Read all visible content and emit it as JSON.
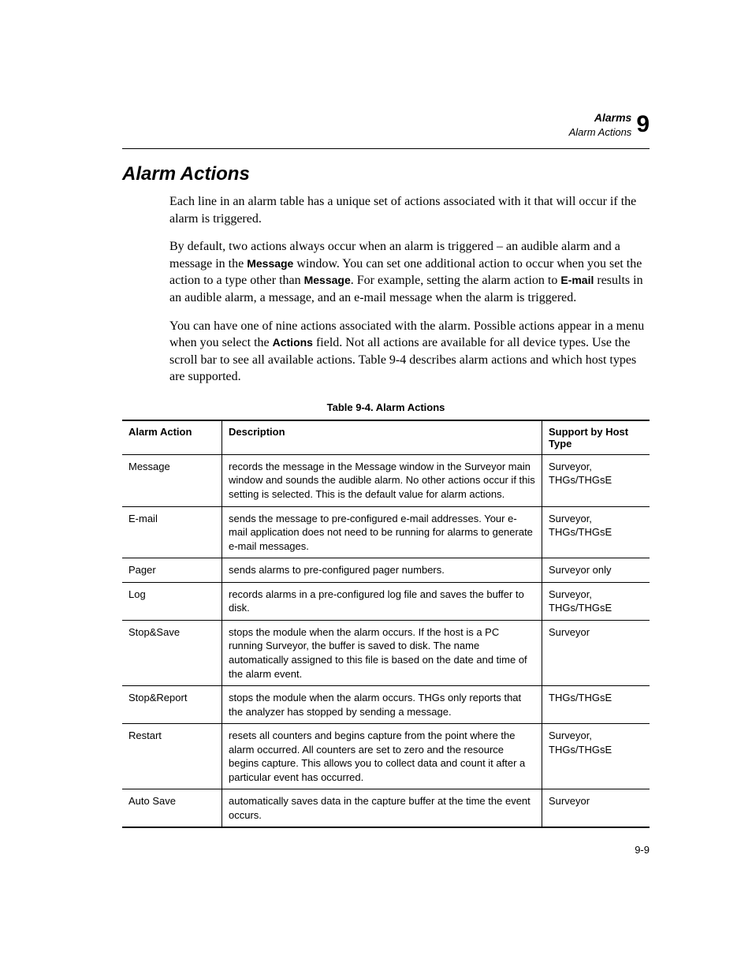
{
  "header": {
    "chapter_title": "Alarms",
    "section_title": "Alarm Actions",
    "chapter_number": "9"
  },
  "section": {
    "heading": "Alarm Actions",
    "p1": "Each line in an alarm table has a unique set of actions associated with it that will occur if the alarm is triggered.",
    "p2_a": "By default, two actions always occur when an alarm is triggered – an audible alarm and a message in the ",
    "p2_b1": "Message",
    "p2_c": " window. You can set one additional action to occur when you set the action to a type other than ",
    "p2_b2": "Message",
    "p2_d": ". For example, setting the alarm action to ",
    "p2_b3": "E-mail",
    "p2_e": " results in an audible alarm, a message, and an e-mail message when the alarm is triggered.",
    "p3_a": "You can have one of nine actions associated with the alarm. Possible actions appear in a menu when you select the ",
    "p3_b1": "Actions",
    "p3_b": " field. Not all actions are available for all device types. Use the scroll bar to see all available actions. Table 9-4 describes alarm actions and which host types are supported."
  },
  "table": {
    "caption": "Table 9-4. Alarm Actions",
    "columns": [
      "Alarm Action",
      "Description",
      "Support by Host Type"
    ],
    "rows": [
      [
        "Message",
        "records the message in the Message window in the Surveyor main window and sounds the audible alarm. No other actions occur if this setting is selected. This is the default value for alarm actions.",
        "Surveyor, THGs/THGsE"
      ],
      [
        "E-mail",
        "sends the message to pre-configured e-mail addresses. Your e-mail application does not need to be running for alarms to generate e-mail messages.",
        "Surveyor, THGs/THGsE"
      ],
      [
        "Pager",
        "sends alarms to pre-configured pager numbers.",
        "Surveyor only"
      ],
      [
        "Log",
        "records alarms in a pre-configured log file and saves the buffer to disk.",
        "Surveyor, THGs/THGsE"
      ],
      [
        "Stop&Save",
        "stops the module when the alarm occurs. If the host is a PC running Surveyor, the buffer is saved to disk. The name automatically assigned to this file is based on the date and time of the alarm event.",
        "Surveyor"
      ],
      [
        "Stop&Report",
        "stops the module when the alarm occurs. THGs only reports that the analyzer has stopped by sending a message.",
        "THGs/THGsE"
      ],
      [
        "Restart",
        "resets all counters and begins capture from the point where the alarm occurred. All counters are set to zero and the resource begins capture. This allows you to collect data and count it after a particular event has occurred.",
        "Surveyor, THGs/THGsE"
      ],
      [
        "Auto Save",
        "automatically saves data in the capture buffer at the time the event occurs.",
        "Surveyor"
      ]
    ]
  },
  "footer": {
    "page_number": "9-9"
  }
}
